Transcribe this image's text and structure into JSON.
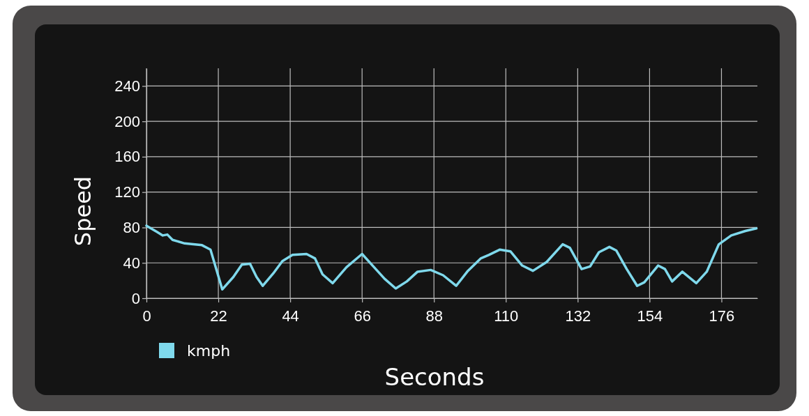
{
  "chart_data": {
    "type": "line",
    "xlabel": "Seconds",
    "ylabel": "Speed",
    "xlim": [
      0,
      187
    ],
    "ylim": [
      0,
      260
    ],
    "xticks": [
      0,
      22,
      44,
      66,
      88,
      110,
      132,
      154,
      176
    ],
    "yticks": [
      0,
      40,
      80,
      120,
      160,
      200,
      240
    ],
    "grid": true,
    "legend": "bottom left",
    "marker": "none",
    "line_style": "solid",
    "series": [
      {
        "name": "kmph",
        "color": "#7fd9ec",
        "x": [
          0,
          3.2,
          5,
          6.4,
          8,
          11.7,
          17,
          19.6,
          23.2,
          26.6,
          29.2,
          31.7,
          33.7,
          35.6,
          38.8,
          41.6,
          44.7,
          49,
          51.6,
          53.9,
          57,
          61.2,
          66,
          69.7,
          72.9,
          76.3,
          79.7,
          83,
          87,
          90.8,
          94.8,
          98.4,
          102.3,
          104.8,
          108.2,
          111.4,
          115,
          118.3,
          122.5,
          127.4,
          129.6,
          133.2,
          135.8,
          138.5,
          141.7,
          143.8,
          147,
          150.2,
          152.4,
          156.6,
          158.7,
          160.9,
          164,
          168.3,
          171.5,
          175.2,
          179,
          183.3,
          186.7
        ],
        "values": [
          82,
          75,
          71,
          72,
          66,
          62,
          60,
          55,
          10,
          24,
          38,
          39,
          24,
          14,
          28,
          42,
          49,
          50,
          45,
          27,
          17,
          35,
          50,
          35,
          22,
          11,
          19,
          30,
          32,
          26,
          14,
          31,
          45,
          49,
          55,
          53,
          37,
          31,
          41,
          61,
          57,
          33,
          36,
          52,
          58,
          54,
          33,
          14,
          18,
          37,
          33,
          19,
          30,
          17,
          30,
          61,
          71,
          76,
          79
        ]
      }
    ]
  }
}
